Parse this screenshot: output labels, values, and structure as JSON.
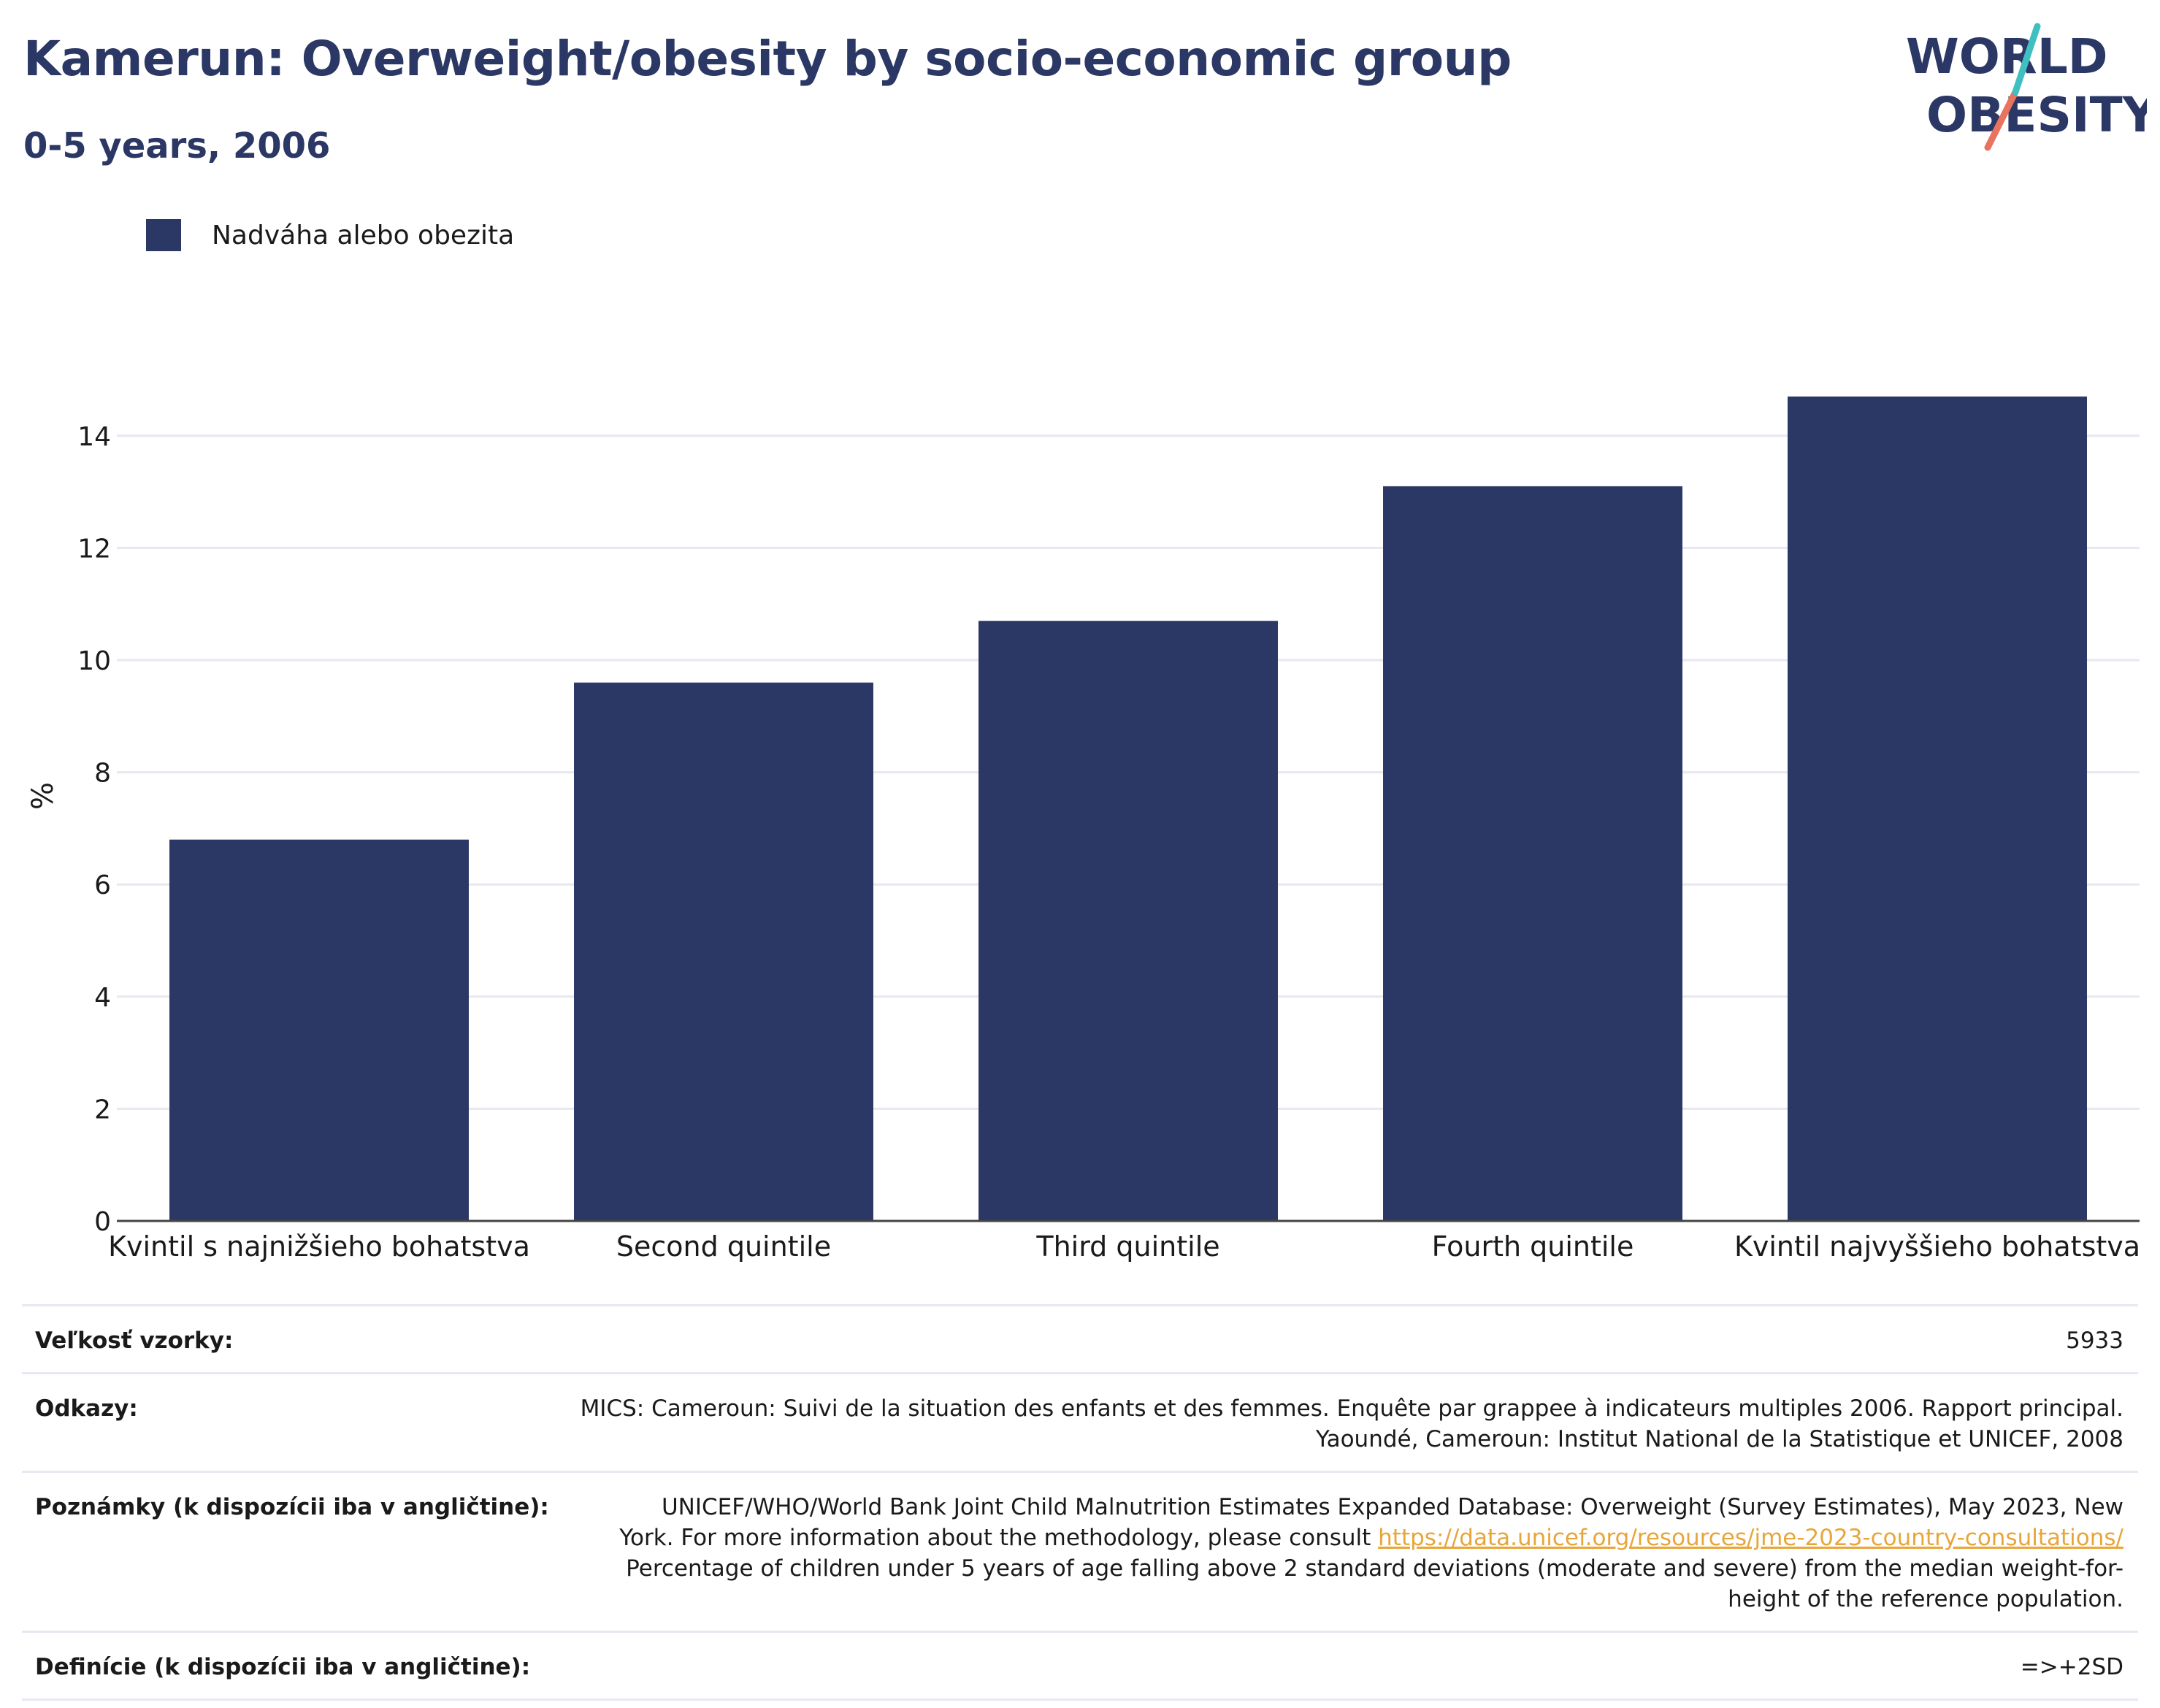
{
  "header": {
    "title": "Kamerun: Overweight/obesity by socio-economic group",
    "subtitle": "0-5 years, 2006",
    "logo_line1": "WORLD",
    "logo_line2": "OBESITY"
  },
  "legend": {
    "label": "Nadváha alebo obezita"
  },
  "colors": {
    "bar": "#2b3764",
    "title": "#2b3764",
    "grid": "#e6e8f2",
    "logo_teal": "#3fbfbf",
    "logo_coral": "#e8735f",
    "link": "#e8a63a"
  },
  "chart_data": {
    "type": "bar",
    "categories": [
      "Kvintil s najnižšieho bohatstva",
      "Second quintile",
      "Third quintile",
      "Fourth quintile",
      "Kvintil najvyššieho bohatstva"
    ],
    "series": [
      {
        "name": "Nadváha alebo obezita",
        "values": [
          6.8,
          9.6,
          10.7,
          13.1,
          14.7
        ]
      }
    ],
    "ylabel": "%",
    "ylim": [
      0,
      15
    ],
    "yticks": [
      0,
      2,
      4,
      6,
      8,
      10,
      12,
      14
    ],
    "grid": true,
    "legend_position": "top-left"
  },
  "info": {
    "sample_label": "Veľkosť vzorky:",
    "sample_value": "5933",
    "refs_label": "Odkazy:",
    "refs_line1": "MICS: Cameroun: Suivi de la situation des enfants et des femmes. Enquête par grappee à indicateurs multiples 2006. Rapport principal.",
    "refs_line2": "Yaoundé, Cameroun: Institut National de la Statistique et UNICEF, 2008",
    "notes_label": "Poznámky (k dispozícii iba v angličtine):",
    "notes_line1": "UNICEF/WHO/World Bank Joint Child Malnutrition Estimates Expanded Database: Overweight (Survey Estimates), May 2023, New",
    "notes_line2_pre": "York. For more information about the methodology, please consult ",
    "notes_link": "https://data.unicef.org/resources/jme-2023-country-consultations/",
    "notes_line3": "Percentage of children under 5 years of age falling above 2 standard deviations (moderate and severe) from the median weight-for-",
    "notes_line4": "height of the reference population.",
    "defs_label": "Definície (k dispozícii iba v angličtine):",
    "defs_value": "=>+2SD"
  }
}
